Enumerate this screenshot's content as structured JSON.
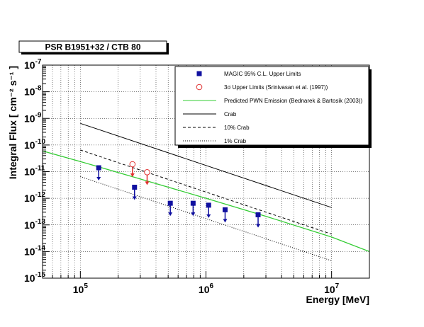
{
  "chart_data": {
    "type": "scatter",
    "title": "PSR B1951+32 / CTB 80",
    "xlabel": "Energy [MeV]",
    "ylabel": "Integral Flux [ cm⁻² s⁻¹ ]",
    "x_scale": "log",
    "y_scale": "log",
    "xlim": [
      50000,
      20000000
    ],
    "ylim": [
      1e-15,
      1e-07
    ],
    "grid": true,
    "legend_position": "top-right",
    "x_ticks": [
      {
        "value": 100000,
        "base": "10",
        "exp": "5"
      },
      {
        "value": 1000000,
        "base": "10",
        "exp": "6"
      },
      {
        "value": 10000000,
        "base": "10",
        "exp": "7"
      }
    ],
    "y_ticks": [
      {
        "value": 1e-07,
        "base": "10",
        "exp": "-7"
      },
      {
        "value": 1e-08,
        "base": "10",
        "exp": "-8"
      },
      {
        "value": 1e-09,
        "base": "10",
        "exp": "-9"
      },
      {
        "value": 1e-10,
        "base": "10",
        "exp": "-10"
      },
      {
        "value": 1e-11,
        "base": "10",
        "exp": "-11"
      },
      {
        "value": 1e-12,
        "base": "10",
        "exp": "-12"
      },
      {
        "value": 1e-13,
        "base": "10",
        "exp": "-13"
      },
      {
        "value": 1e-14,
        "base": "10",
        "exp": "-14"
      },
      {
        "value": 1e-15,
        "base": "10",
        "exp": "-15"
      }
    ],
    "series": [
      {
        "name": "MAGIC 95% C.L. Upper Limits",
        "kind": "upper-limit-points",
        "marker": "filled-square",
        "color": "#1010a0",
        "x": [
          140000,
          270000,
          520000,
          790000,
          1050000,
          1420000,
          2600000
        ],
        "y": [
          1.4e-11,
          2.6e-12,
          6.5e-13,
          6.5e-13,
          5.5e-13,
          3.7e-13,
          2.4e-13
        ]
      },
      {
        "name": "3σ Upper Limits (Srinivasan et al. (1997))",
        "kind": "upper-limit-points",
        "marker": "open-circle",
        "color": "#e03030",
        "x": [
          260000,
          340000
        ],
        "y": [
          1.9e-11,
          9.5e-12
        ]
      },
      {
        "name": "Predicted PWN Emission (Bednarek & Bartosik (2003))",
        "kind": "line",
        "style": "solid",
        "color": "#33cc33",
        "x": [
          50000,
          100000,
          300000,
          1000000,
          3000000,
          10000000,
          20000000
        ],
        "y": [
          6e-11,
          2.4e-11,
          5.3e-12,
          1e-12,
          2.1e-13,
          3.5e-14,
          1e-14
        ]
      },
      {
        "name": "Crab",
        "kind": "line",
        "style": "solid",
        "color": "#000000",
        "x": [
          100000,
          10000000
        ],
        "y": [
          6.5e-10,
          4.5e-13
        ]
      },
      {
        "name": "10% Crab",
        "kind": "line",
        "style": "dashed",
        "color": "#000000",
        "x": [
          100000,
          10000000
        ],
        "y": [
          6.5e-11,
          4.5e-14
        ]
      },
      {
        "name": "1% Crab",
        "kind": "line",
        "style": "dotted",
        "color": "#000000",
        "x": [
          100000,
          10000000
        ],
        "y": [
          6.5e-12,
          4.5e-15
        ]
      }
    ]
  }
}
